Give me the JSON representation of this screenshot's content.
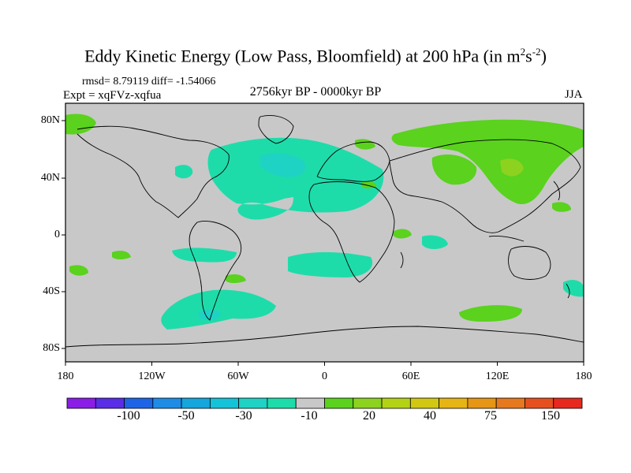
{
  "title": {
    "main": "Eddy Kinetic Energy (Low Pass, Bloomfield) at 200 hPa (in m",
    "sup1": "2",
    "mid": "s",
    "sup2": "-2",
    "end": ")"
  },
  "stats_line": "rmsd= 8.79119 diff= -1.54066",
  "expt_line": "Expt = xqFVz-xqfua",
  "period": "2756kyr BP - 0000kyr BP",
  "season": "JJA",
  "lat_labels": [
    "80N",
    "40N",
    "0",
    "40S",
    "80S"
  ],
  "lon_labels": [
    "180",
    "120W",
    "60W",
    "0",
    "60E",
    "120E",
    "180"
  ],
  "colorbar": {
    "colors": [
      "#8a1ee6",
      "#5a2de6",
      "#1e64e6",
      "#1e8ce6",
      "#14a6dc",
      "#14c3d8",
      "#1ed2c4",
      "#1edcaa",
      "#c8c8c8",
      "#5ad21e",
      "#8cd21e",
      "#b4d214",
      "#d2c814",
      "#e6b414",
      "#e69614",
      "#e6781e",
      "#e6501e",
      "#e6281e"
    ],
    "labels": [
      "-100",
      "-50",
      "-30",
      "-10",
      "20",
      "40",
      "75",
      "150"
    ]
  }
}
